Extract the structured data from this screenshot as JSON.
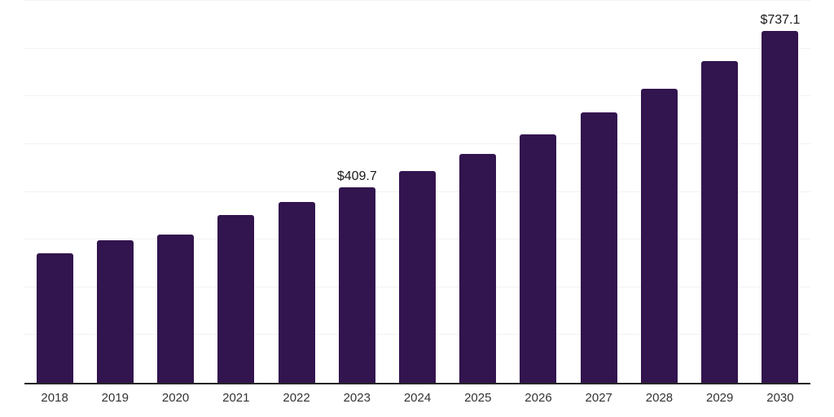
{
  "chart_data": {
    "type": "bar",
    "title": "",
    "xlabel": "",
    "ylabel": "",
    "categories": [
      "2018",
      "2019",
      "2020",
      "2021",
      "2022",
      "2023",
      "2024",
      "2025",
      "2026",
      "2027",
      "2028",
      "2029",
      "2030"
    ],
    "values": [
      272,
      298,
      310,
      352,
      378,
      409.7,
      443,
      479,
      520,
      566,
      616,
      674,
      737.1
    ],
    "data_labels": [
      "",
      "",
      "",
      "",
      "",
      "$409.7",
      "",
      "",
      "",
      "",
      "",
      "",
      "$737.1"
    ],
    "ylim": [
      0,
      800
    ],
    "grid": {
      "show": true,
      "interval": 100,
      "color": "#f2f2f2"
    },
    "legend_position": "none",
    "colors": {
      "bar": "#32144e",
      "axis_line": "#262626",
      "tick_label": "#333333",
      "data_label": "#1a1a1a",
      "background": "#ffffff"
    }
  }
}
